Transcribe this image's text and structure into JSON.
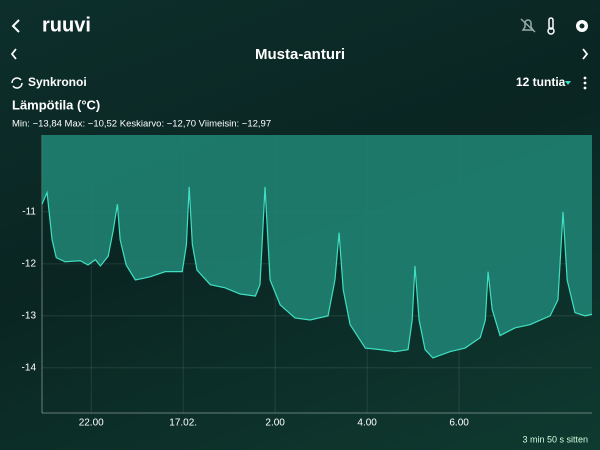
{
  "header": {
    "logo": "ruuvi",
    "sensor_name": "Musta-anturi",
    "sync": "Synkronoi",
    "period": "12 tuntia"
  },
  "chart_data": {
    "type": "area",
    "title": "Lämpötila (°C)",
    "subtitle": "Min: −13,84 Max: −10,52 Keskiarvo: −12,70 Viimeisin: −12,97",
    "x": [
      20.93,
      21.04,
      21.15,
      21.24,
      21.43,
      21.76,
      21.93,
      22.09,
      22.2,
      22.37,
      22.48,
      22.57,
      22.63,
      22.76,
      22.96,
      23.28,
      23.61,
      23.98,
      24.07,
      24.13,
      24.2,
      24.3,
      24.59,
      24.91,
      25.24,
      25.57,
      25.67,
      25.78,
      25.89,
      26.11,
      26.43,
      26.76,
      27.15,
      27.3,
      27.39,
      27.48,
      27.63,
      27.96,
      28.28,
      28.61,
      28.89,
      28.98,
      29.04,
      29.13,
      29.26,
      29.43,
      29.8,
      30.13,
      30.46,
      30.57,
      30.63,
      30.72,
      30.89,
      31.22,
      31.54,
      31.98,
      32.15,
      32.26,
      32.35,
      32.52,
      32.74,
      32.89
    ],
    "series": [
      {
        "color": "#3fe0c2",
        "values": [
          -10.85,
          -10.63,
          -11.54,
          -11.88,
          -11.96,
          -11.94,
          -12.02,
          -11.92,
          -12.04,
          -11.85,
          -11.35,
          -10.85,
          -11.54,
          -12.02,
          -12.31,
          -12.25,
          -12.15,
          -12.15,
          -11.63,
          -10.52,
          -11.63,
          -12.12,
          -12.4,
          -12.46,
          -12.58,
          -12.62,
          -12.4,
          -10.52,
          -12.31,
          -12.79,
          -13.04,
          -13.08,
          -13.0,
          -12.31,
          -11.4,
          -12.5,
          -13.17,
          -13.62,
          -13.65,
          -13.69,
          -13.65,
          -13.08,
          -12.04,
          -13.08,
          -13.65,
          -13.81,
          -13.69,
          -13.62,
          -13.42,
          -13.08,
          -12.15,
          -12.88,
          -13.38,
          -13.23,
          -13.17,
          -13.0,
          -12.69,
          -11.0,
          -12.31,
          -12.94,
          -13.0,
          -12.97
        ]
      }
    ],
    "fill_color": "#1f8272",
    "xlim": [
      20.93,
      32.89
    ],
    "ylim": [
      -14.87,
      -9.52
    ],
    "xticks": [
      {
        "value": 22,
        "label": "22.00"
      },
      {
        "value": 24,
        "label": "17.02."
      },
      {
        "value": 26,
        "label": "2.00"
      },
      {
        "value": 28,
        "label": "4.00"
      },
      {
        "value": 30,
        "label": "6.00"
      }
    ],
    "yticks": [
      -11,
      -12,
      -13,
      -14
    ],
    "grid": true
  },
  "footer": {
    "updated": "3 min 50 s sitten"
  }
}
